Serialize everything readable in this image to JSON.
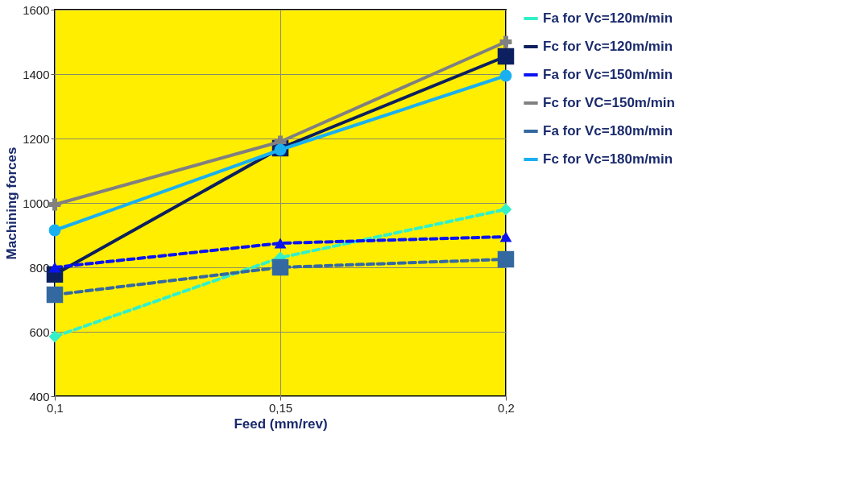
{
  "chart_data": {
    "type": "line",
    "xlabel": "Feed (mm/rev)",
    "ylabel": "Machining forces",
    "x": [
      0.1,
      0.15,
      0.2
    ],
    "xlim": [
      0.1,
      0.2
    ],
    "xticks": [
      {
        "value": 0.1,
        "label": "0,1"
      },
      {
        "value": 0.15,
        "label": "0,15"
      },
      {
        "value": 0.2,
        "label": "0,2"
      }
    ],
    "ylim": [
      400,
      1600
    ],
    "yticks": [
      400,
      600,
      800,
      1000,
      1200,
      1400,
      1600
    ],
    "grid": true,
    "legend": "right",
    "series": [
      {
        "name": "Fa for Vc=120m/min",
        "color": "#33f0c8",
        "values": [
          585,
          830,
          980
        ],
        "marker": "diamond",
        "line_style": "dashed"
      },
      {
        "name": "Fc for Vc=120m/min",
        "color": "#0c1f5e",
        "values": [
          778,
          1170,
          1455
        ],
        "marker": "square",
        "line_style": "solid"
      },
      {
        "name": "Fa for Vc=150m/min",
        "color": "#0a14f0",
        "values": [
          800,
          875,
          895
        ],
        "marker": "triangle",
        "line_style": "dashed"
      },
      {
        "name": "Fc for VC=150m/min",
        "color": "#808080",
        "values": [
          995,
          1190,
          1500
        ],
        "marker": "cross",
        "line_style": "solid"
      },
      {
        "name": "Fa for Vc=180m/min",
        "color": "#3468a0",
        "values": [
          715,
          800,
          825
        ],
        "marker": "square",
        "line_style": "dashed"
      },
      {
        "name": "Fc for Vc=180m/min",
        "color": "#1ab0f0",
        "values": [
          915,
          1165,
          1395
        ],
        "marker": "circle",
        "line_style": "solid"
      }
    ]
  }
}
